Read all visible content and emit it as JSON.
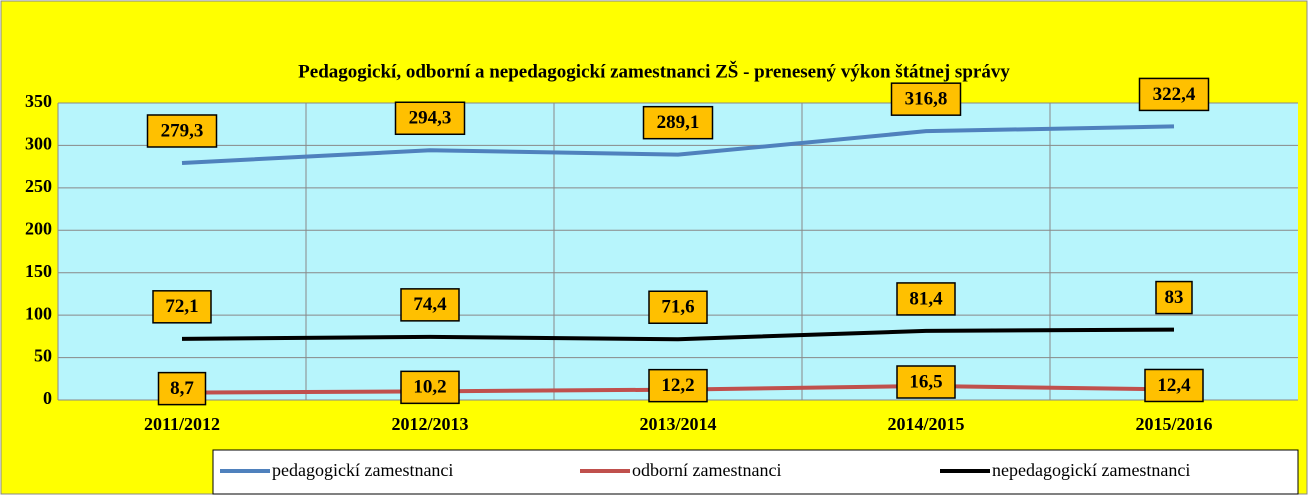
{
  "chart_data": {
    "type": "line",
    "title": "Pedagogickí, odborní a nepedagogickí zamestnanci ZŠ - prenesený výkon štátnej správy",
    "categories": [
      "2011/2012",
      "2012/2013",
      "2013/2014",
      "2014/2015",
      "2015/2016"
    ],
    "series": [
      {
        "name": "pedagogickí zamestnanci",
        "color": "#4f81bd",
        "values": [
          279.3,
          294.3,
          289.1,
          316.8,
          322.4
        ],
        "value_labels": [
          "279,3",
          "294,3",
          "289,1",
          "316,8",
          "322,4"
        ]
      },
      {
        "name": "odborní zamestnanci",
        "color": "#c0504d",
        "values": [
          8.7,
          10.2,
          12.2,
          16.5,
          12.4
        ],
        "value_labels": [
          "8,7",
          "10,2",
          "12,2",
          "16,5",
          "12,4"
        ]
      },
      {
        "name": "nepedagogickí zamestnanci",
        "color": "#000000",
        "values": [
          72.1,
          74.4,
          71.6,
          81.4,
          83
        ],
        "value_labels": [
          "72,1",
          "74,4",
          "71,6",
          "81,4",
          "83"
        ]
      }
    ],
    "ylim": [
      0,
      350
    ],
    "yticks": [
      0,
      50,
      100,
      150,
      200,
      250,
      300,
      350
    ],
    "grid": true,
    "legend": "bottom"
  }
}
